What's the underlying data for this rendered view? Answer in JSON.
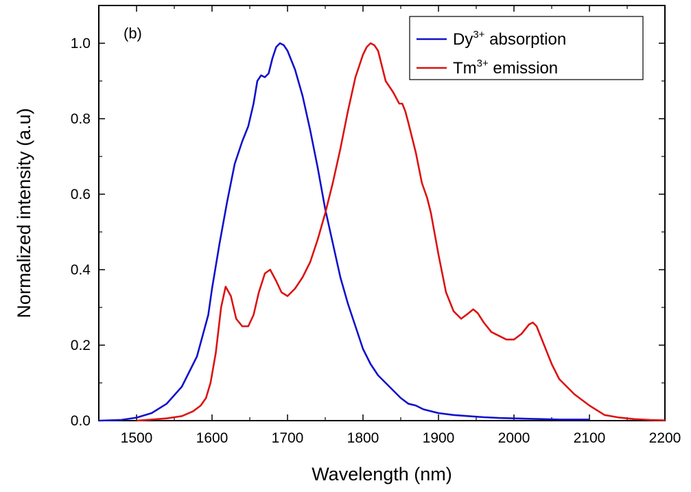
{
  "chart_data": {
    "type": "line",
    "panel_label": "(b)",
    "xlabel": "Wavelength (nm)",
    "ylabel": "Normalized intensity (a.u)",
    "xlim": [
      1450,
      2200
    ],
    "ylim": [
      0.0,
      1.1
    ],
    "x_ticks": [
      1500,
      1600,
      1700,
      1800,
      1900,
      2000,
      2100,
      2200
    ],
    "y_ticks": [
      "0.0",
      "0.2",
      "0.4",
      "0.6",
      "0.8",
      "1.0"
    ],
    "legend_position": "top-right",
    "series": [
      {
        "name": "Dy3+ absorption",
        "legend_base": "Dy",
        "legend_sup": "3+",
        "legend_rest": " absorption",
        "color": "#1010cc",
        "x": [
          1450,
          1480,
          1500,
          1520,
          1540,
          1560,
          1580,
          1595,
          1600,
          1610,
          1620,
          1630,
          1640,
          1648,
          1655,
          1660,
          1665,
          1670,
          1675,
          1680,
          1685,
          1690,
          1695,
          1700,
          1710,
          1720,
          1730,
          1740,
          1750,
          1760,
          1770,
          1780,
          1790,
          1800,
          1810,
          1820,
          1830,
          1840,
          1850,
          1860,
          1870,
          1880,
          1890,
          1900,
          1920,
          1940,
          1960,
          1980,
          2000,
          2020,
          2040,
          2060,
          2080,
          2100
        ],
        "y": [
          0.0,
          0.002,
          0.008,
          0.02,
          0.045,
          0.09,
          0.17,
          0.28,
          0.35,
          0.47,
          0.58,
          0.68,
          0.74,
          0.78,
          0.84,
          0.9,
          0.915,
          0.91,
          0.92,
          0.96,
          0.99,
          1.0,
          0.995,
          0.98,
          0.93,
          0.86,
          0.77,
          0.67,
          0.56,
          0.47,
          0.38,
          0.31,
          0.25,
          0.19,
          0.15,
          0.12,
          0.1,
          0.08,
          0.06,
          0.045,
          0.04,
          0.03,
          0.025,
          0.02,
          0.015,
          0.012,
          0.009,
          0.007,
          0.006,
          0.005,
          0.004,
          0.003,
          0.003,
          0.003
        ]
      },
      {
        "name": "Tm3+ emission",
        "legend_base": "Tm",
        "legend_sup": "3+",
        "legend_rest": " emission",
        "color": "#dd1111",
        "x": [
          1500,
          1520,
          1540,
          1560,
          1575,
          1585,
          1592,
          1598,
          1605,
          1612,
          1618,
          1625,
          1632,
          1640,
          1648,
          1655,
          1662,
          1670,
          1677,
          1685,
          1692,
          1700,
          1710,
          1720,
          1730,
          1740,
          1750,
          1760,
          1770,
          1780,
          1790,
          1800,
          1805,
          1810,
          1815,
          1820,
          1825,
          1830,
          1840,
          1848,
          1852,
          1856,
          1860,
          1870,
          1878,
          1885,
          1890,
          1900,
          1910,
          1920,
          1930,
          1940,
          1946,
          1952,
          1960,
          1970,
          1980,
          1990,
          2000,
          2010,
          2020,
          2025,
          2030,
          2040,
          2050,
          2060,
          2080,
          2100,
          2120,
          2140,
          2160,
          2180,
          2200
        ],
        "y": [
          0.0,
          0.003,
          0.006,
          0.012,
          0.025,
          0.04,
          0.06,
          0.1,
          0.18,
          0.3,
          0.355,
          0.33,
          0.27,
          0.25,
          0.25,
          0.28,
          0.34,
          0.39,
          0.4,
          0.37,
          0.34,
          0.33,
          0.35,
          0.38,
          0.42,
          0.48,
          0.55,
          0.63,
          0.72,
          0.82,
          0.91,
          0.97,
          0.99,
          1.0,
          0.995,
          0.98,
          0.94,
          0.9,
          0.87,
          0.84,
          0.84,
          0.82,
          0.79,
          0.71,
          0.63,
          0.59,
          0.55,
          0.44,
          0.34,
          0.29,
          0.27,
          0.285,
          0.295,
          0.285,
          0.26,
          0.235,
          0.225,
          0.215,
          0.215,
          0.23,
          0.255,
          0.26,
          0.25,
          0.2,
          0.15,
          0.11,
          0.07,
          0.04,
          0.015,
          0.008,
          0.004,
          0.002,
          0.001
        ]
      }
    ]
  }
}
